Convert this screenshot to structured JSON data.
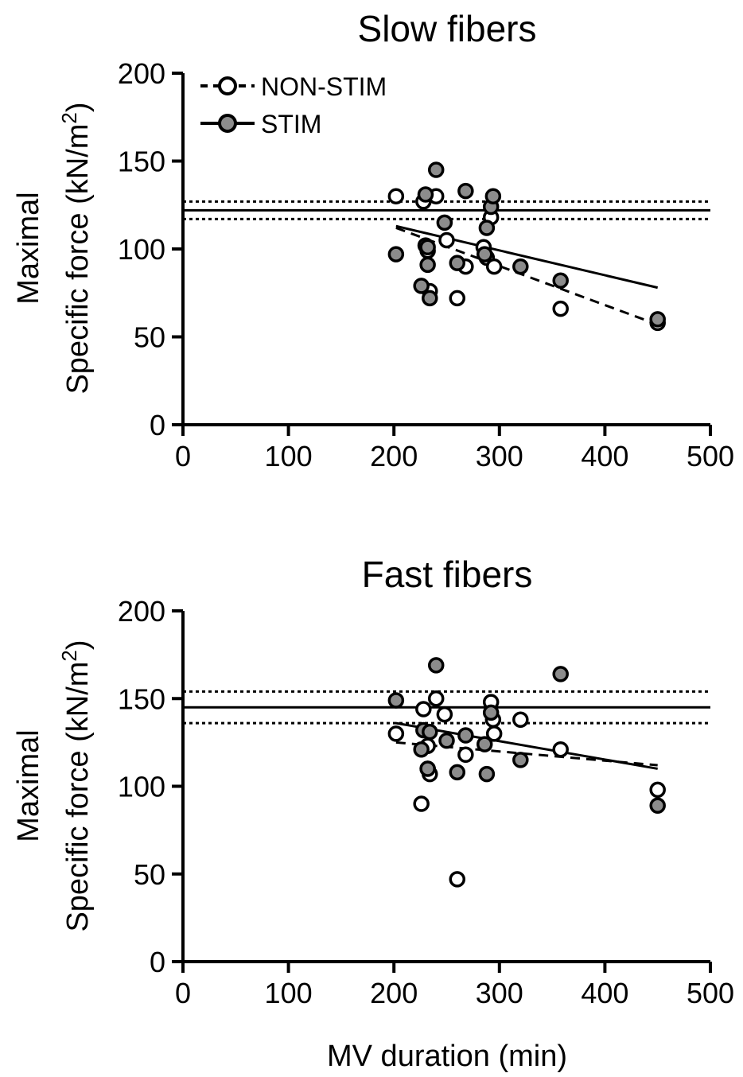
{
  "chart_data": [
    {
      "type": "scatter",
      "title": "Slow fibers",
      "ylabel_line1": "Maximal",
      "ylabel_line2_prefix": "Specific force (kN/m",
      "ylabel_line2_sup": "2",
      "ylabel_line2_suffix": ")",
      "xlabel": "",
      "xlim": [
        0,
        500
      ],
      "ylim": [
        0,
        200
      ],
      "xticks": [
        "0",
        "100",
        "200",
        "300",
        "400",
        "500"
      ],
      "yticks": [
        "0",
        "50",
        "100",
        "150",
        "200"
      ],
      "legend": {
        "position": "top-left",
        "entries": [
          "NON-STIM",
          "STIM"
        ]
      },
      "reference": {
        "mean": 122,
        "ci_upper": 127,
        "ci_lower": 117
      },
      "series": [
        {
          "name": "NON-STIM",
          "marker": "open",
          "line": "dashed",
          "fit": [
            [
              202,
              112
            ],
            [
              450,
              57
            ]
          ],
          "points": [
            [
              202,
              130
            ],
            [
              228,
              127
            ],
            [
              230,
              102
            ],
            [
              232,
              99
            ],
            [
              234,
              76
            ],
            [
              240,
              130
            ],
            [
              250,
              105
            ],
            [
              260,
              72
            ],
            [
              268,
              90
            ],
            [
              285,
              101
            ],
            [
              288,
              95
            ],
            [
              292,
              118
            ],
            [
              295,
              90
            ],
            [
              358,
              66
            ],
            [
              450,
              58
            ]
          ]
        },
        {
          "name": "STIM",
          "marker": "filled",
          "line": "solid",
          "fit": [
            [
              202,
              113
            ],
            [
              450,
              78
            ]
          ],
          "points": [
            [
              202,
              97
            ],
            [
              226,
              79
            ],
            [
              230,
              131
            ],
            [
              232,
              101
            ],
            [
              232,
              91
            ],
            [
              234,
              72
            ],
            [
              240,
              145
            ],
            [
              248,
              115
            ],
            [
              260,
              92
            ],
            [
              268,
              133
            ],
            [
              286,
              97
            ],
            [
              288,
              112
            ],
            [
              292,
              124
            ],
            [
              294,
              130
            ],
            [
              320,
              90
            ],
            [
              358,
              82
            ],
            [
              450,
              60
            ]
          ]
        }
      ]
    },
    {
      "type": "scatter",
      "title": "Fast fibers",
      "ylabel_line1": "Maximal",
      "ylabel_line2_prefix": "Specific force (kN/m",
      "ylabel_line2_sup": "2",
      "ylabel_line2_suffix": ")",
      "xlabel": "MV duration (min)",
      "xlim": [
        0,
        500
      ],
      "ylim": [
        0,
        200
      ],
      "xticks": [
        "0",
        "100",
        "200",
        "300",
        "400",
        "500"
      ],
      "yticks": [
        "0",
        "50",
        "100",
        "150",
        "200"
      ],
      "reference": {
        "mean": 145,
        "ci_upper": 154,
        "ci_lower": 136
      },
      "series": [
        {
          "name": "NON-STIM",
          "marker": "open",
          "line": "dashed",
          "fit": [
            [
              202,
              125
            ],
            [
              450,
              112
            ]
          ],
          "points": [
            [
              202,
              130
            ],
            [
              226,
              90
            ],
            [
              228,
              144
            ],
            [
              232,
              110
            ],
            [
              232,
              123
            ],
            [
              234,
              107
            ],
            [
              240,
              150
            ],
            [
              248,
              141
            ],
            [
              260,
              47
            ],
            [
              268,
              118
            ],
            [
              292,
              148
            ],
            [
              294,
              138
            ],
            [
              295,
              130
            ],
            [
              320,
              138
            ],
            [
              358,
              121
            ],
            [
              450,
              98
            ]
          ]
        },
        {
          "name": "STIM",
          "marker": "filled",
          "line": "solid",
          "fit": [
            [
              202,
              136
            ],
            [
              450,
              110
            ]
          ],
          "points": [
            [
              202,
              149
            ],
            [
              226,
              121
            ],
            [
              228,
              132
            ],
            [
              232,
              110
            ],
            [
              234,
              131
            ],
            [
              240,
              169
            ],
            [
              250,
              126
            ],
            [
              260,
              108
            ],
            [
              268,
              129
            ],
            [
              286,
              124
            ],
            [
              288,
              107
            ],
            [
              292,
              142
            ],
            [
              320,
              115
            ],
            [
              358,
              164
            ],
            [
              450,
              89
            ]
          ]
        }
      ]
    }
  ],
  "colors": {
    "open_fill": "#ffffff",
    "filled_fill": "#8c8c8c",
    "stroke": "#000000"
  }
}
